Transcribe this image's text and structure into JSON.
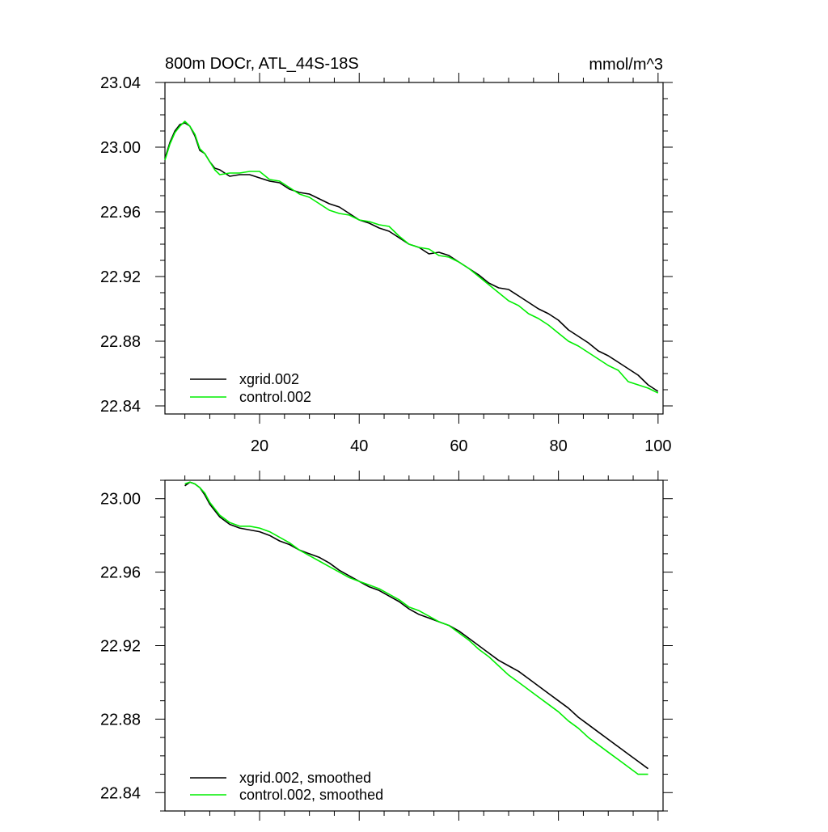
{
  "chart_data": [
    {
      "type": "line",
      "title": "800m DOCr, ATL_44S-18S",
      "units": "mmol/m^3",
      "xlim": [
        1,
        101
      ],
      "ylim": [
        22.835,
        23.04
      ],
      "x_ticks": [
        20,
        40,
        60,
        80,
        100
      ],
      "x_tick_labels": [
        "20",
        "40",
        "60",
        "80",
        "100"
      ],
      "y_ticks": [
        22.84,
        22.88,
        22.92,
        22.96,
        23.0,
        23.04
      ],
      "y_tick_labels": [
        "22.84",
        "22.88",
        "22.92",
        "22.96",
        "23.00",
        "23.04"
      ],
      "grid": false,
      "legend_position": "bottom-left",
      "series": [
        {
          "name": "xgrid.002",
          "color": "#000000",
          "x": [
            1,
            2,
            3,
            4,
            5,
            6,
            7,
            8,
            9,
            10,
            11,
            12,
            14,
            16,
            18,
            20,
            22,
            24,
            26,
            28,
            30,
            32,
            34,
            36,
            38,
            40,
            42,
            44,
            46,
            48,
            50,
            52,
            54,
            56,
            58,
            60,
            62,
            64,
            66,
            68,
            70,
            72,
            74,
            76,
            78,
            80,
            82,
            84,
            86,
            88,
            90,
            92,
            94,
            96,
            98,
            100
          ],
          "y": [
            22.993,
            23.003,
            23.01,
            23.014,
            23.015,
            23.013,
            23.007,
            22.998,
            22.996,
            22.991,
            22.987,
            22.986,
            22.982,
            22.983,
            22.983,
            22.981,
            22.979,
            22.978,
            22.974,
            22.972,
            22.971,
            22.968,
            22.965,
            22.963,
            22.959,
            22.955,
            22.953,
            22.95,
            22.948,
            22.944,
            22.94,
            22.938,
            22.934,
            22.935,
            22.933,
            22.929,
            22.925,
            22.921,
            22.916,
            22.913,
            22.912,
            22.908,
            22.904,
            22.9,
            22.897,
            22.893,
            22.887,
            22.883,
            22.879,
            22.874,
            22.871,
            22.867,
            22.863,
            22.859,
            22.853,
            22.849
          ]
        },
        {
          "name": "control.002",
          "color": "#00ee00",
          "x": [
            1,
            2,
            3,
            4,
            5,
            6,
            7,
            8,
            9,
            10,
            11,
            12,
            14,
            16,
            18,
            20,
            22,
            24,
            26,
            28,
            30,
            32,
            34,
            36,
            38,
            40,
            42,
            44,
            46,
            48,
            50,
            52,
            54,
            56,
            58,
            60,
            62,
            64,
            66,
            68,
            70,
            72,
            74,
            76,
            78,
            80,
            82,
            84,
            86,
            88,
            90,
            92,
            94,
            96,
            98,
            100
          ],
          "y": [
            22.992,
            23.002,
            23.009,
            23.013,
            23.016,
            23.013,
            23.008,
            22.999,
            22.996,
            22.991,
            22.986,
            22.983,
            22.984,
            22.984,
            22.985,
            22.985,
            22.98,
            22.979,
            22.975,
            22.971,
            22.969,
            22.965,
            22.961,
            22.959,
            22.958,
            22.955,
            22.954,
            22.952,
            22.951,
            22.945,
            22.94,
            22.938,
            22.937,
            22.933,
            22.932,
            22.929,
            22.925,
            22.92,
            22.915,
            22.91,
            22.905,
            22.902,
            22.897,
            22.894,
            22.89,
            22.885,
            22.88,
            22.877,
            22.873,
            22.869,
            22.865,
            22.862,
            22.855,
            22.853,
            22.851,
            22.848
          ]
        }
      ]
    },
    {
      "type": "line",
      "xlim": [
        1,
        101
      ],
      "ylim": [
        22.83,
        23.01
      ],
      "y_ticks": [
        22.84,
        22.88,
        22.92,
        22.96,
        23.0
      ],
      "y_tick_labels": [
        "22.84",
        "22.88",
        "22.92",
        "22.96",
        "23.00"
      ],
      "x_ticks": [
        20,
        40,
        60,
        80,
        100
      ],
      "grid": false,
      "legend_position": "bottom-left",
      "series": [
        {
          "name": "xgrid.002, smoothed",
          "color": "#000000",
          "x": [
            5,
            6,
            7,
            8,
            9,
            10,
            12,
            14,
            16,
            18,
            20,
            22,
            24,
            26,
            28,
            30,
            32,
            34,
            36,
            38,
            40,
            42,
            44,
            46,
            48,
            50,
            52,
            54,
            56,
            58,
            60,
            62,
            64,
            66,
            68,
            70,
            72,
            74,
            76,
            78,
            80,
            82,
            84,
            86,
            88,
            90,
            92,
            94,
            96,
            98
          ],
          "y": [
            23.007,
            23.009,
            23.008,
            23.006,
            23.002,
            22.997,
            22.99,
            22.986,
            22.984,
            22.983,
            22.982,
            22.98,
            22.977,
            22.975,
            22.972,
            22.97,
            22.968,
            22.965,
            22.961,
            22.958,
            22.955,
            22.952,
            22.95,
            22.947,
            22.944,
            22.94,
            22.937,
            22.935,
            22.933,
            22.931,
            22.928,
            22.924,
            22.92,
            22.916,
            22.912,
            22.909,
            22.906,
            22.902,
            22.898,
            22.894,
            22.89,
            22.886,
            22.881,
            22.877,
            22.873,
            22.869,
            22.865,
            22.861,
            22.857,
            22.853
          ]
        },
        {
          "name": "control.002, smoothed",
          "color": "#00ee00",
          "x": [
            5,
            6,
            7,
            8,
            9,
            10,
            12,
            14,
            16,
            18,
            20,
            22,
            24,
            26,
            28,
            30,
            32,
            34,
            36,
            38,
            40,
            42,
            44,
            46,
            48,
            50,
            52,
            54,
            56,
            58,
            60,
            62,
            64,
            66,
            68,
            70,
            72,
            74,
            76,
            78,
            80,
            82,
            84,
            86,
            88,
            90,
            92,
            94,
            96,
            98
          ],
          "y": [
            23.008,
            23.009,
            23.008,
            23.006,
            23.003,
            22.998,
            22.991,
            22.987,
            22.985,
            22.985,
            22.984,
            22.982,
            22.979,
            22.976,
            22.972,
            22.969,
            22.966,
            22.963,
            22.96,
            22.957,
            22.955,
            22.953,
            22.951,
            22.948,
            22.945,
            22.941,
            22.939,
            22.936,
            22.933,
            22.931,
            22.927,
            22.923,
            22.918,
            22.914,
            22.909,
            22.904,
            22.9,
            22.896,
            22.892,
            22.888,
            22.884,
            22.879,
            22.875,
            22.87,
            22.866,
            22.862,
            22.858,
            22.854,
            22.85,
            22.85
          ]
        }
      ]
    }
  ]
}
